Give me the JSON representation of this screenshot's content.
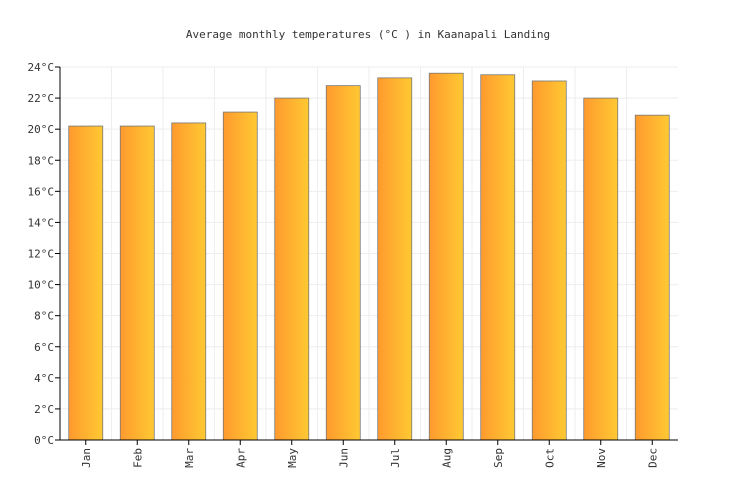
{
  "chart_data": {
    "type": "bar",
    "title": "Average monthly temperatures (°C ) in Kaanapali Landing",
    "xlabel": "",
    "ylabel": "",
    "categories": [
      "Jan",
      "Feb",
      "Mar",
      "Apr",
      "May",
      "Jun",
      "Jul",
      "Aug",
      "Sep",
      "Oct",
      "Nov",
      "Dec"
    ],
    "values": [
      20.2,
      20.2,
      20.4,
      21.1,
      22.0,
      22.8,
      23.3,
      23.6,
      23.5,
      23.1,
      22.0,
      20.9
    ],
    "ylim": [
      0,
      24
    ],
    "yticks": [
      "0°C",
      "2°C",
      "4°C",
      "6°C",
      "8°C",
      "10°C",
      "12°C",
      "14°C",
      "16°C",
      "18°C",
      "20°C",
      "22°C",
      "24°C"
    ],
    "grid": true,
    "legend": "none",
    "colors": {
      "bar_start": "#ff9a2e",
      "bar_end": "#ffc933",
      "bar_stroke": "#777777",
      "grid": "#eeeeee",
      "axis": "#000000"
    }
  }
}
